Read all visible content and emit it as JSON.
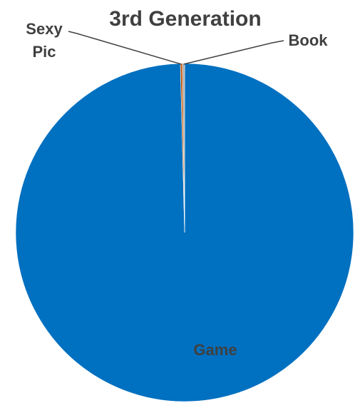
{
  "chart_data": {
    "type": "pie",
    "title": "3rd Generation",
    "slices": [
      {
        "label": "Game",
        "value": 99.6,
        "color": "#0070C0"
      },
      {
        "label": "Sexy Pic",
        "value": 0.2,
        "color": "#C55A11"
      },
      {
        "label": "Book",
        "value": 0.2,
        "color": "#A5A5A5"
      }
    ],
    "label_lines": {
      "Sexy Pic": [
        "Sexy",
        "Pic"
      ]
    },
    "legend": "none",
    "grid": false
  }
}
